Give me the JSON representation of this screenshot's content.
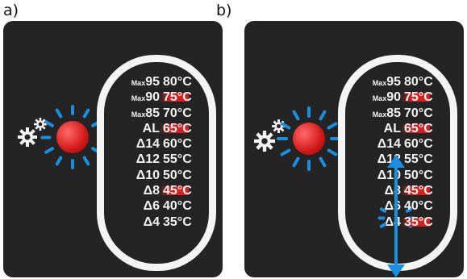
{
  "labels": {
    "a": "a)",
    "b": "b)"
  },
  "rows": [
    {
      "prefix": "Max",
      "label": "95",
      "temp": "80°C",
      "highlight": false
    },
    {
      "prefix": "Max",
      "label": "90",
      "temp": "75°C",
      "highlight": true
    },
    {
      "prefix": "Max",
      "label": "85",
      "temp": "70°C",
      "highlight": false
    },
    {
      "prefix": "",
      "label": "AL",
      "temp": "65°C",
      "highlight": true
    },
    {
      "prefix": "",
      "label": "Δ14",
      "temp": "60°C",
      "highlight": false
    },
    {
      "prefix": "",
      "label": "Δ12",
      "temp": "55°C",
      "highlight": false
    },
    {
      "prefix": "",
      "label": "Δ10",
      "temp": "50°C",
      "highlight": false
    },
    {
      "prefix": "",
      "label": "Δ8",
      "temp": "45°C",
      "highlight": true
    },
    {
      "prefix": "",
      "label": "Δ6",
      "temp": "40°C",
      "highlight": false
    },
    {
      "prefix": "",
      "label": "Δ4",
      "temp": "35°C",
      "highlight": false
    }
  ],
  "panel_b_extra_highlight_row": 9,
  "colors": {
    "led": "#d31818",
    "rays": "#1a8ee0",
    "bar": "#d42020",
    "panel": "#242424"
  },
  "icons": [
    "gear-icon",
    "gear-small-icon",
    "led-indicator-icon",
    "up-down-arrow-icon"
  ]
}
